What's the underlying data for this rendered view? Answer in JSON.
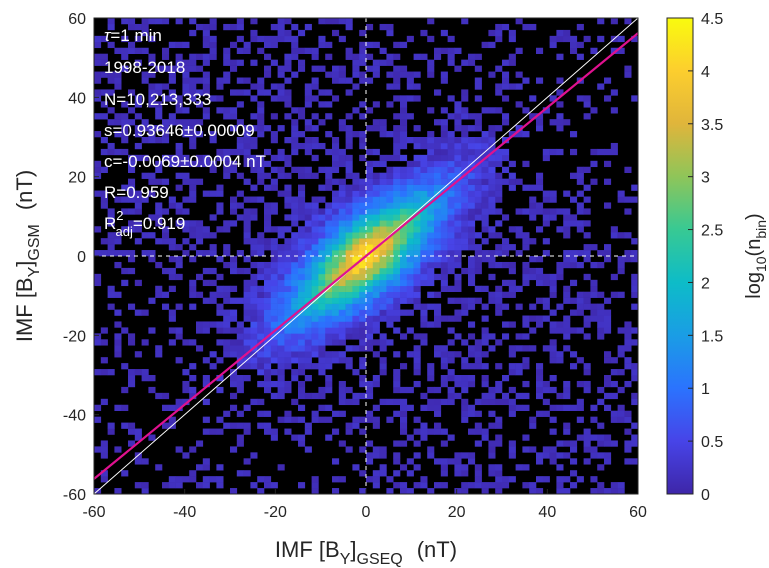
{
  "chart_data": {
    "type": "heatmap",
    "title": "",
    "xlabel": {
      "main": "IMF [B",
      "sub1": "Y",
      "close": "]",
      "sub2": "GSEQ",
      "unit": "(nT)"
    },
    "ylabel": {
      "main": "IMF [B",
      "sub1": "Y",
      "close": "]",
      "sub2": "GSM",
      "unit": "(nT)"
    },
    "xlim": [
      -60,
      60
    ],
    "ylim": [
      -60,
      60
    ],
    "xticks": [
      -60,
      -40,
      -20,
      0,
      20,
      40,
      60
    ],
    "yticks": [
      -60,
      -40,
      -20,
      0,
      20,
      40,
      60
    ],
    "colorbar": {
      "label": {
        "pre": "log",
        "sub1": "10",
        "mid": "(n",
        "sub2": "bin",
        "close": ")"
      },
      "range": [
        0,
        4.5
      ],
      "ticks": [
        0,
        0.5,
        1,
        1.5,
        2,
        2.5,
        3,
        3.5,
        4,
        4.5
      ],
      "colormap": [
        "#3e26a8",
        "#4744e8",
        "#2b73fe",
        "#1a9de5",
        "#0dbcc8",
        "#38c993",
        "#8fc559",
        "#e0b53b",
        "#fcce2e",
        "#f9fb0e"
      ]
    },
    "density_model": {
      "center": [
        0,
        0
      ],
      "peak_log10": 4.3,
      "spread_along": 13,
      "spread_across": 5,
      "tail_along": 0.05
    },
    "lines": [
      {
        "name": "identity",
        "slope": 1,
        "intercept": 0,
        "color": "#ffffff"
      },
      {
        "name": "fit",
        "slope": 0.93646,
        "intercept": -0.0069,
        "color": "#e0118f"
      }
    ],
    "reference_lines": {
      "x": 0,
      "y": 0,
      "style": "dashed",
      "color": "#ffffff"
    },
    "annotations": [
      {
        "id": "tau",
        "sym": "τ",
        "text": "=1 min"
      },
      {
        "id": "years",
        "text": "1998-2018"
      },
      {
        "id": "n",
        "text": "N=10,213,333"
      },
      {
        "id": "s",
        "text": "s=0.93646±0.00009"
      },
      {
        "id": "c",
        "text": "c=-0.0069±0.0004 nT"
      },
      {
        "id": "r",
        "text": "R=0.959"
      },
      {
        "id": "r2",
        "pre": "R",
        "sup": "2",
        "sub": "adj",
        "post": "=0.919"
      }
    ]
  }
}
